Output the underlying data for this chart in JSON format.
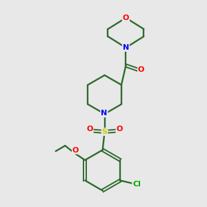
{
  "background_color": "#e8e8e8",
  "bond_color": "#2d6b2d",
  "atom_colors": {
    "O": "#ff0000",
    "N": "#0000ff",
    "S": "#cccc00",
    "Cl": "#00aa00",
    "C": "#2d6b2d"
  },
  "figsize": [
    3.0,
    3.0
  ],
  "dpi": 100
}
